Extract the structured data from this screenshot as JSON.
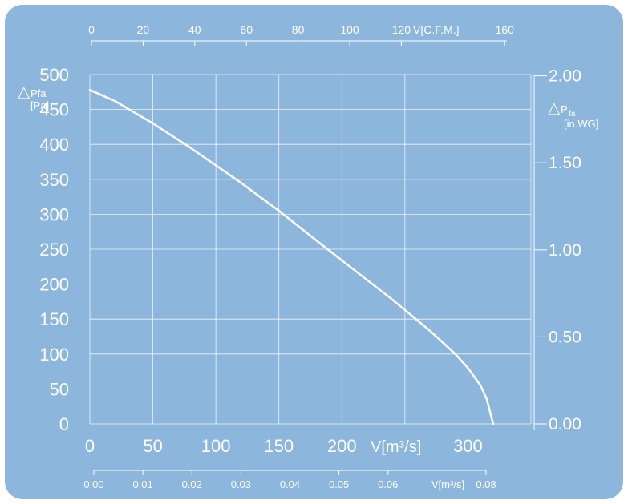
{
  "chart_data": {
    "type": "line",
    "x": [
      0,
      20,
      50,
      80,
      100,
      120,
      150,
      180,
      210,
      240,
      270,
      290,
      300,
      310,
      315,
      320
    ],
    "series": [
      {
        "values": [
          478,
          462,
          430,
          395,
          370,
          345,
          305,
          262,
          220,
          178,
          133,
          100,
          80,
          55,
          35,
          0
        ]
      }
    ],
    "xlim": [
      0,
      350
    ],
    "ylim": [
      0,
      500
    ],
    "bottom_axis": {
      "ticks": [
        "0",
        "50",
        "100",
        "150",
        "200",
        "300"
      ],
      "label": "V[m³/s]"
    },
    "top_axis": {
      "ticks": [
        "0",
        "20",
        "40",
        "60",
        "80",
        "100",
        "120",
        "160"
      ],
      "label": "V[C.F.M.]"
    },
    "bottom_secondary_axis": {
      "ticks": [
        "0.00",
        "0.01",
        "0.02",
        "0.03",
        "0.04",
        "0.05",
        "0.06",
        "0.08"
      ],
      "label": "V[m³/s]"
    },
    "left_axis": {
      "ticks": [
        "500",
        "450",
        "400",
        "350",
        "300",
        "250",
        "200",
        "150",
        "100",
        "50",
        "0"
      ],
      "label_symbol": "△",
      "label_main": "Pfa",
      "label_unit": "[Pa]"
    },
    "right_axis": {
      "ticks": [
        "2.00",
        "1.50",
        "1.00",
        "0.50",
        "0.00"
      ],
      "label_symbol": "△",
      "label_main": "P",
      "label_sub": "fa",
      "label_unit": "[in.WG]"
    },
    "grid": true,
    "legend": "none"
  },
  "colors": {
    "background": "#8cb6dc",
    "foreground": "#ffffff"
  }
}
